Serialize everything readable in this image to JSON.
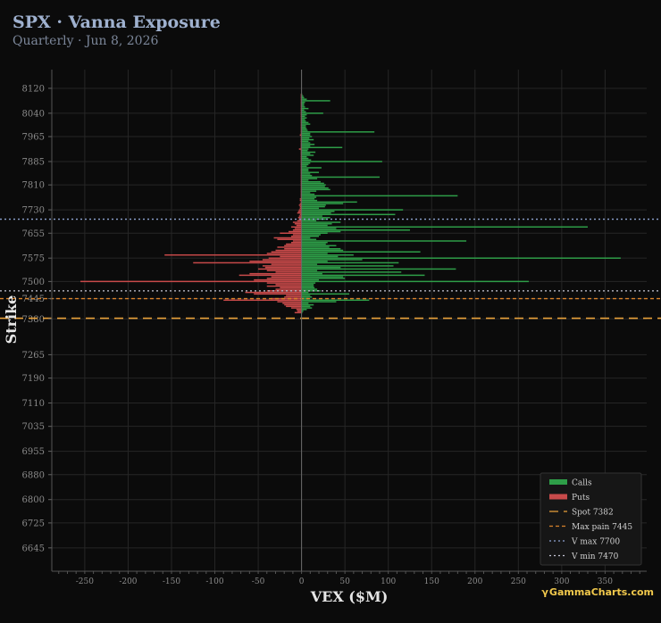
{
  "header": {
    "title": "SPX · Vanna Exposure",
    "subtitle": "Quarterly · Jun 8, 2026"
  },
  "branding": {
    "symbol": "γ",
    "text": "GammaCharts.com"
  },
  "chart_data": {
    "type": "bar",
    "orientation": "horizontal",
    "xlabel": "VEX ($M)",
    "ylabel": "Strike",
    "xlim": [
      -288,
      398
    ],
    "ylim": [
      6570,
      8180
    ],
    "x_ticks": [
      -250,
      -200,
      -150,
      -100,
      -50,
      0,
      50,
      100,
      150,
      200,
      250,
      300,
      350
    ],
    "y_ticks": [
      6645,
      6725,
      6800,
      6880,
      6955,
      7035,
      7110,
      7190,
      7265,
      7380,
      7445,
      7500,
      7575,
      7655,
      7730,
      7810,
      7885,
      7965,
      8040,
      8120
    ],
    "grid": true,
    "legend_position": "bottom-right",
    "colors": {
      "calls": "#2e9e48",
      "puts": "#c84a4a",
      "spot": "#e8a13a",
      "max_pain": "#d9822b",
      "v_max": "#8ea4d2",
      "v_min": "#c7c7d6",
      "background": "#0b0b0b",
      "grid": "#262626",
      "axis_text": "#8a8a8a"
    },
    "legend": [
      {
        "key": "calls",
        "label": "Calls",
        "style": "patch"
      },
      {
        "key": "puts",
        "label": "Puts",
        "style": "patch"
      },
      {
        "key": "spot",
        "label": "Spot 7382",
        "style": "longdash"
      },
      {
        "key": "max_pain",
        "label": "Max pain 7445",
        "style": "dash"
      },
      {
        "key": "v_max",
        "label": "V max 7700",
        "style": "dot"
      },
      {
        "key": "v_min",
        "label": "V min 7470",
        "style": "dot"
      }
    ],
    "reference_lines": [
      {
        "key": "spot",
        "value": 7382
      },
      {
        "key": "max_pain",
        "value": 7445
      },
      {
        "key": "v_max",
        "value": 7700
      },
      {
        "key": "v_min",
        "value": 7470
      }
    ],
    "strikes": [
      7400,
      7405,
      7410,
      7415,
      7420,
      7425,
      7430,
      7435,
      7440,
      7445,
      7450,
      7455,
      7460,
      7465,
      7470,
      7475,
      7480,
      7485,
      7490,
      7495,
      7500,
      7505,
      7510,
      7515,
      7520,
      7525,
      7530,
      7535,
      7540,
      7545,
      7550,
      7555,
      7560,
      7565,
      7570,
      7575,
      7580,
      7585,
      7590,
      7595,
      7600,
      7605,
      7610,
      7615,
      7620,
      7625,
      7630,
      7635,
      7640,
      7645,
      7650,
      7655,
      7660,
      7665,
      7670,
      7675,
      7680,
      7685,
      7690,
      7695,
      7700,
      7705,
      7710,
      7715,
      7720,
      7725,
      7730,
      7735,
      7740,
      7745,
      7750,
      7755,
      7760,
      7765,
      7770,
      7775,
      7780,
      7785,
      7790,
      7795,
      7800,
      7805,
      7810,
      7815,
      7820,
      7825,
      7830,
      7835,
      7840,
      7845,
      7850,
      7855,
      7860,
      7865,
      7870,
      7875,
      7880,
      7885,
      7890,
      7895,
      7900,
      7905,
      7910,
      7915,
      7920,
      7925,
      7930,
      7935,
      7940,
      7945,
      7950,
      7955,
      7960,
      7965,
      7970,
      7975,
      7980,
      7985,
      7990,
      7995,
      8000,
      8005,
      8010,
      8015,
      8020,
      8025,
      8030,
      8035,
      8040,
      8045,
      8050,
      8055,
      8060,
      8065,
      8070,
      8075,
      8080,
      8085,
      8090,
      8095,
      8100
    ],
    "series": [
      {
        "name": "Calls",
        "key": "calls",
        "values": [
          1,
          2,
          6,
          12,
          10,
          14,
          8,
          40,
          78,
          8,
          12,
          10,
          55,
          8,
          22,
          18,
          15,
          14,
          14,
          16,
          262,
          20,
          50,
          48,
          142,
          24,
          115,
          18,
          178,
          45,
          106,
          18,
          112,
          30,
          70,
          368,
          42,
          60,
          30,
          137,
          48,
          45,
          32,
          40,
          28,
          30,
          190,
          17,
          10,
          20,
          22,
          30,
          45,
          125,
          40,
          330,
          30,
          35,
          45,
          17,
          28,
          33,
          24,
          108,
          34,
          38,
          117,
          20,
          27,
          28,
          48,
          64,
          18,
          15,
          17,
          180,
          15,
          10,
          17,
          33,
          31,
          27,
          28,
          26,
          22,
          8,
          18,
          90,
          12,
          10,
          20,
          8,
          8,
          23,
          6,
          8,
          10,
          93,
          11,
          8,
          6,
          14,
          10,
          16,
          7,
          8,
          47,
          10,
          15,
          10,
          8,
          14,
          9,
          12,
          10,
          10,
          84,
          7,
          6,
          5,
          5,
          10,
          8,
          5,
          4,
          6,
          4,
          6,
          25,
          5,
          3,
          8,
          4,
          3,
          3,
          4,
          33,
          6,
          3,
          2,
          1
        ]
      },
      {
        "name": "Puts",
        "key": "puts",
        "values": [
          -8,
          -5,
          -6,
          -12,
          -18,
          -20,
          -22,
          -28,
          -90,
          -35,
          -20,
          -18,
          -55,
          -65,
          -40,
          -30,
          -25,
          -40,
          -30,
          -40,
          -255,
          -55,
          -40,
          -35,
          -72,
          -60,
          -30,
          -40,
          -50,
          -42,
          -45,
          -35,
          -125,
          -60,
          -45,
          -38,
          -25,
          -158,
          -40,
          -35,
          -30,
          -20,
          -28,
          -20,
          -18,
          -12,
          -10,
          -28,
          -32,
          -12,
          -10,
          -25,
          -15,
          -10,
          -8,
          -12,
          -6,
          -8,
          -10,
          -5,
          -3,
          -4,
          -3,
          -2,
          -5,
          -4,
          -3,
          -2,
          -2,
          -3,
          -2,
          -1,
          -2,
          -2,
          -1,
          -1,
          -1,
          -1,
          -1,
          -1,
          -1,
          -1,
          -1,
          -1,
          -1,
          -1,
          -1,
          -1,
          -1,
          -1,
          -1,
          -1,
          -1,
          -1,
          -1,
          -1,
          -1,
          -1,
          -1,
          -1,
          -1,
          -1,
          -1,
          -1,
          -1,
          -3,
          -1,
          -1,
          -1,
          -1,
          -1,
          -1,
          -1,
          -1,
          -2,
          -1,
          -1,
          -1,
          -1,
          -1,
          -1,
          -1,
          -1,
          -1,
          -1,
          -1,
          -1,
          -1,
          -1,
          -1,
          -1,
          -1,
          -1,
          -1,
          -1,
          -1,
          -1,
          -1,
          -1,
          -1,
          -1
        ]
      }
    ]
  }
}
